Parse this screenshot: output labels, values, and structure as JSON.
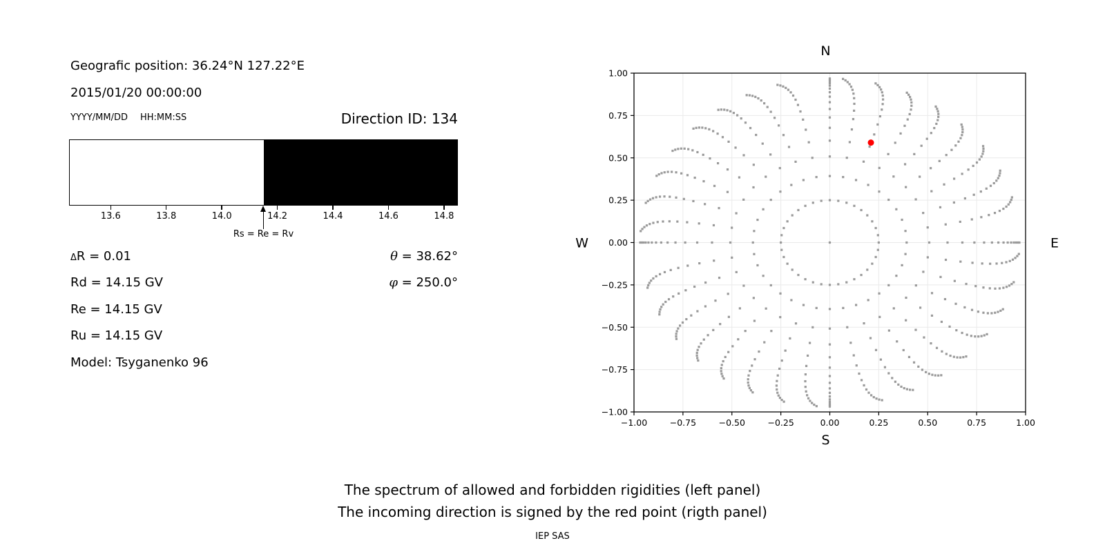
{
  "header": {
    "geo_position": "Geografic position: 36.24°N 127.22°E",
    "datetime": "2015/01/20 00:00:00",
    "date_format": "YYYY/MM/DD",
    "time_format": "HH:MM:SS",
    "direction_id": "Direction ID: 134"
  },
  "parameters": {
    "delta_symbol": "Δ",
    "delta_rest": "R = 0.01",
    "rd": "Rd = 14.15 GV",
    "re": "Re = 14.15 GV",
    "ru": "Ru = 14.15 GV",
    "model": "Model: Tsyganenko 96",
    "theta_symbol": "θ",
    "theta_rest": " = 38.62°",
    "phi_symbol": "φ",
    "phi_rest": " = 250.0°"
  },
  "caption": {
    "line1": "The spectrum of allowed and forbidden rigidities (left panel)",
    "line2": "The incoming direction is signed by the red point (rigth panel)",
    "credit": "IEP SAS"
  },
  "chart_data": [
    {
      "type": "bar",
      "panel": "left-spectrum",
      "title": "Spectrum of allowed (white) and forbidden (black) rigidities, GV",
      "xlim": [
        13.45,
        14.85
      ],
      "x_ticks": [
        13.6,
        13.8,
        14.0,
        14.2,
        14.4,
        14.6,
        14.8
      ],
      "x_tick_labels": [
        "13.6",
        "13.8",
        "14.0",
        "14.2",
        "14.4",
        "14.6",
        "14.8"
      ],
      "segments": [
        {
          "label": "allowed",
          "from": 13.45,
          "to": 14.15,
          "color": "#ffffff"
        },
        {
          "label": "forbidden",
          "from": 14.15,
          "to": 14.85,
          "color": "#000000"
        }
      ],
      "marker": {
        "value": 14.15,
        "label": "Rs = Re = Rv"
      }
    },
    {
      "type": "scatter",
      "panel": "right-direction",
      "title": "Incoming direction map (red point = incoming direction)",
      "xlim": [
        -1,
        1
      ],
      "ylim": [
        -1,
        1
      ],
      "x_ticks": [
        -1,
        -0.75,
        -0.5,
        -0.25,
        0,
        0.25,
        0.5,
        0.75,
        1
      ],
      "y_ticks": [
        1,
        0.75,
        0.5,
        0.25,
        0,
        -0.25,
        -0.5,
        -0.75,
        -1
      ],
      "x_tick_labels": [
        "−1.00",
        "−0.75",
        "−0.50",
        "−0.25",
        "0.00",
        "0.25",
        "0.50",
        "0.75",
        "1.00"
      ],
      "y_tick_labels": [
        "1.00",
        "0.75",
        "0.50",
        "0.25",
        "0.00",
        "−0.25",
        "−0.50",
        "−0.75",
        "−1.00"
      ],
      "compass": {
        "top": "N",
        "bottom": "S",
        "left": "W",
        "right": "E"
      },
      "grid": true,
      "grid_color": "#eaeaea",
      "dots": {
        "color": "#9a9a9a",
        "spoke_count": 36,
        "spoke_step_deg": 10,
        "dots_per_spoke": 16,
        "r_start": 0.25,
        "r_asymptote": 1.0,
        "radial_geometric_ratio": 0.81,
        "azimuth_drift_deg": -6,
        "center_dot": true
      },
      "red_point": {
        "x": 0.21,
        "y": 0.59,
        "color": "#ff0000"
      }
    }
  ]
}
